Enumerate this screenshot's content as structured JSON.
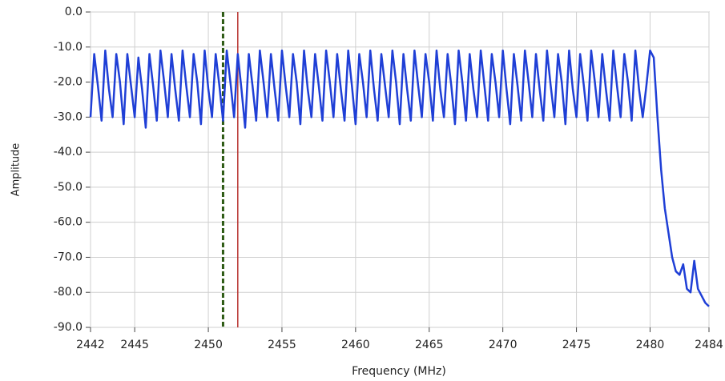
{
  "chart_data": {
    "type": "line",
    "x_label": "Frequency (MHz)",
    "y_label": "Amplitude",
    "xlim": [
      2442,
      2484
    ],
    "ylim": [
      -90,
      0
    ],
    "xticks": [
      2442,
      2445,
      2450,
      2455,
      2460,
      2465,
      2470,
      2475,
      2480,
      2484
    ],
    "yticks": [
      {
        "value": 0,
        "label": "0.0"
      },
      {
        "value": -10,
        "label": "-10.0"
      },
      {
        "value": -20,
        "label": "-20.0"
      },
      {
        "value": -30,
        "label": "-30.0"
      },
      {
        "value": -40,
        "label": "-40.0"
      },
      {
        "value": -50,
        "label": "-50.0"
      },
      {
        "value": -60,
        "label": "-60.0"
      },
      {
        "value": -70,
        "label": "-70.0"
      },
      {
        "value": -80,
        "label": "-80.0"
      },
      {
        "value": -90,
        "label": "-90.0"
      }
    ],
    "grid": true,
    "cursors": [
      {
        "x": 2451,
        "color": "#2d5a14",
        "style": "dashed"
      },
      {
        "x": 2452,
        "color": "#b8322f",
        "style": "solid"
      }
    ],
    "x": [
      2442,
      2442.25,
      2442.5,
      2442.75,
      2443,
      2443.25,
      2443.5,
      2443.75,
      2444,
      2444.25,
      2444.5,
      2444.75,
      2445,
      2445.25,
      2445.5,
      2445.75,
      2446,
      2446.25,
      2446.5,
      2446.75,
      2447,
      2447.25,
      2447.5,
      2447.75,
      2448,
      2448.25,
      2448.5,
      2448.75,
      2449,
      2449.25,
      2449.5,
      2449.75,
      2450,
      2450.25,
      2450.5,
      2450.75,
      2451,
      2451.25,
      2451.5,
      2451.75,
      2452,
      2452.25,
      2452.5,
      2452.75,
      2453,
      2453.25,
      2453.5,
      2453.75,
      2454,
      2454.25,
      2454.5,
      2454.75,
      2455,
      2455.25,
      2455.5,
      2455.75,
      2456,
      2456.25,
      2456.5,
      2456.75,
      2457,
      2457.25,
      2457.5,
      2457.75,
      2458,
      2458.25,
      2458.5,
      2458.75,
      2459,
      2459.25,
      2459.5,
      2459.75,
      2460,
      2460.25,
      2460.5,
      2460.75,
      2461,
      2461.25,
      2461.5,
      2461.75,
      2462,
      2462.25,
      2462.5,
      2462.75,
      2463,
      2463.25,
      2463.5,
      2463.75,
      2464,
      2464.25,
      2464.5,
      2464.75,
      2465,
      2465.25,
      2465.5,
      2465.75,
      2466,
      2466.25,
      2466.5,
      2466.75,
      2467,
      2467.25,
      2467.5,
      2467.75,
      2468,
      2468.25,
      2468.5,
      2468.75,
      2469,
      2469.25,
      2469.5,
      2469.75,
      2470,
      2470.25,
      2470.5,
      2470.75,
      2471,
      2471.25,
      2471.5,
      2471.75,
      2472,
      2472.25,
      2472.5,
      2472.75,
      2473,
      2473.25,
      2473.5,
      2473.75,
      2474,
      2474.25,
      2474.5,
      2474.75,
      2475,
      2475.25,
      2475.5,
      2475.75,
      2476,
      2476.25,
      2476.5,
      2476.75,
      2477,
      2477.25,
      2477.5,
      2477.75,
      2478,
      2478.25,
      2478.5,
      2478.75,
      2479,
      2479.25,
      2479.5,
      2479.75,
      2480,
      2480.25,
      2480.5,
      2480.75,
      2481,
      2481.25,
      2481.5,
      2481.75,
      2482,
      2482.25,
      2482.5,
      2482.75,
      2483,
      2483.25,
      2483.5,
      2483.75,
      2484
    ],
    "series": [
      {
        "name": "Amplitude",
        "color": "#1f3fd6",
        "values": [
          -30,
          -12,
          -21,
          -31,
          -11,
          -22,
          -30,
          -12,
          -20,
          -32,
          -12,
          -21,
          -30,
          -13,
          -22,
          -33,
          -12,
          -21,
          -31,
          -11,
          -20,
          -30,
          -12,
          -22,
          -31,
          -11,
          -21,
          -30,
          -12,
          -20,
          -32,
          -11,
          -22,
          -30,
          -12,
          -21,
          -31,
          -11,
          -20,
          -30,
          -12,
          -22,
          -33,
          -12,
          -21,
          -31,
          -11,
          -20,
          -30,
          -12,
          -22,
          -31,
          -11,
          -21,
          -30,
          -12,
          -20,
          -32,
          -11,
          -22,
          -30,
          -12,
          -21,
          -31,
          -11,
          -20,
          -30,
          -12,
          -22,
          -31,
          -11,
          -21,
          -32,
          -12,
          -20,
          -30,
          -11,
          -22,
          -31,
          -12,
          -21,
          -30,
          -11,
          -20,
          -32,
          -12,
          -22,
          -31,
          -11,
          -21,
          -30,
          -12,
          -20,
          -31,
          -11,
          -22,
          -30,
          -12,
          -21,
          -32,
          -11,
          -20,
          -31,
          -12,
          -22,
          -30,
          -11,
          -21,
          -31,
          -12,
          -20,
          -30,
          -11,
          -22,
          -32,
          -12,
          -21,
          -31,
          -11,
          -20,
          -30,
          -12,
          -22,
          -31,
          -11,
          -21,
          -30,
          -12,
          -20,
          -32,
          -11,
          -22,
          -30,
          -12,
          -21,
          -31,
          -11,
          -20,
          -30,
          -12,
          -22,
          -31,
          -11,
          -21,
          -30,
          -12,
          -20,
          -31,
          -11,
          -22,
          -30,
          -21,
          -11,
          -13,
          -30,
          -45,
          -56,
          -63,
          -70,
          -74,
          -75,
          -72,
          -79,
          -80,
          -71,
          -79,
          -81,
          -83,
          -84
        ]
      }
    ]
  }
}
